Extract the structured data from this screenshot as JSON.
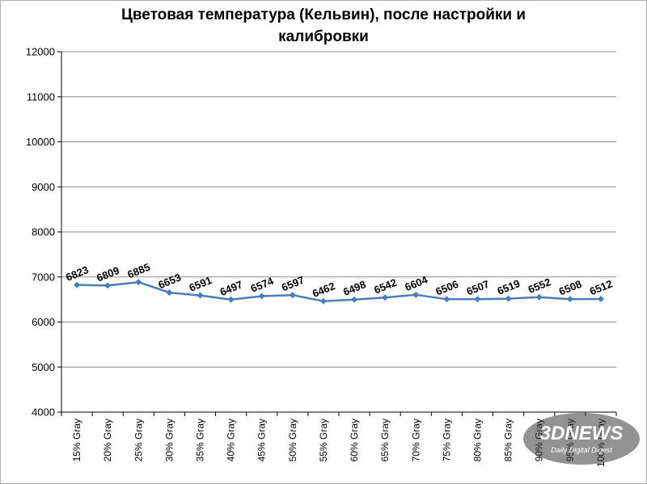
{
  "chart_data": {
    "type": "line",
    "title_line1": "Цветовая температура (Кельвин),  после настройки и",
    "title_line2": "калибровки",
    "categories": [
      "15% Gray",
      "20% Gray",
      "25% Gray",
      "30% Gray",
      "35% Gray",
      "40% Gray",
      "45% Gray",
      "50% Gray",
      "55% Gray",
      "60% Gray",
      "65% Gray",
      "70% Gray",
      "75% Gray",
      "80% Gray",
      "85% Gray",
      "90% Gray",
      "95% Gray",
      "100% Gray"
    ],
    "values": [
      6823,
      6809,
      6885,
      6653,
      6591,
      6497,
      6574,
      6597,
      6462,
      6498,
      6542,
      6604,
      6506,
      6507,
      6519,
      6552,
      6508,
      6512
    ],
    "ylim": [
      4000,
      12000
    ],
    "yticks": [
      4000,
      5000,
      6000,
      7000,
      8000,
      9000,
      10000,
      11000,
      12000
    ],
    "grid": "y-major",
    "legend": "none",
    "line_color": "#4a7ebb"
  },
  "watermark": {
    "logo": "3DNEWS",
    "tagline": "Daily Digital Digest"
  }
}
